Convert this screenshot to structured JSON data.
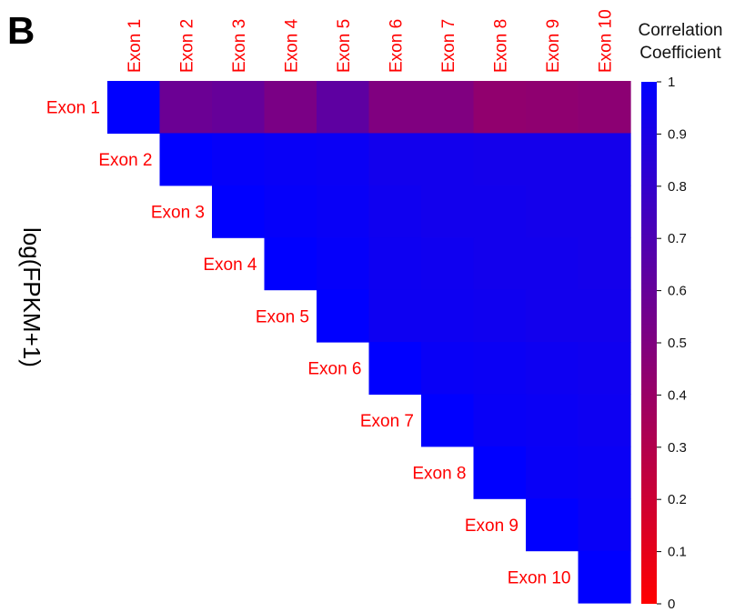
{
  "panel_letter": "B",
  "clipped_side_text": "log(FPKM+1)",
  "chart_data": {
    "type": "heatmap",
    "layout": "upper-triangular correlation matrix",
    "row_labels": [
      "Exon 1",
      "Exon 2",
      "Exon 3",
      "Exon 4",
      "Exon 5",
      "Exon 6",
      "Exon 7",
      "Exon 8",
      "Exon 9",
      "Exon 10"
    ],
    "col_labels": [
      "Exon 1",
      "Exon 2",
      "Exon 3",
      "Exon 4",
      "Exon 5",
      "Exon 6",
      "Exon 7",
      "Exon 8",
      "Exon 9",
      "Exon 10"
    ],
    "label_color": "#ff0000",
    "matrix": [
      [
        1.0,
        0.58,
        0.6,
        0.52,
        0.63,
        0.5,
        0.5,
        0.43,
        0.44,
        0.45
      ],
      [
        null,
        1.0,
        0.98,
        0.97,
        0.96,
        0.93,
        0.93,
        0.92,
        0.92,
        0.92
      ],
      [
        null,
        null,
        1.0,
        0.98,
        0.97,
        0.94,
        0.93,
        0.93,
        0.92,
        0.92
      ],
      [
        null,
        null,
        null,
        1.0,
        0.98,
        0.95,
        0.94,
        0.93,
        0.93,
        0.92
      ],
      [
        null,
        null,
        null,
        null,
        1.0,
        0.95,
        0.95,
        0.94,
        0.93,
        0.93
      ],
      [
        null,
        null,
        null,
        null,
        null,
        1.0,
        0.97,
        0.96,
        0.95,
        0.94
      ],
      [
        null,
        null,
        null,
        null,
        null,
        null,
        1.0,
        0.97,
        0.96,
        0.95
      ],
      [
        null,
        null,
        null,
        null,
        null,
        null,
        null,
        1.0,
        0.97,
        0.96
      ],
      [
        null,
        null,
        null,
        null,
        null,
        null,
        null,
        null,
        1.0,
        0.97
      ],
      [
        null,
        null,
        null,
        null,
        null,
        null,
        null,
        null,
        null,
        1.0
      ]
    ],
    "colorbar": {
      "title": "Correlation\nCoefficient",
      "min": 0,
      "max": 1,
      "ticks": [
        "0",
        "0.1",
        "0.2",
        "0.3",
        "0.4",
        "0.5",
        "0.6",
        "0.7",
        "0.8",
        "0.9",
        "1"
      ],
      "color_low": "#ff0000",
      "color_high": "#0000ff"
    }
  }
}
